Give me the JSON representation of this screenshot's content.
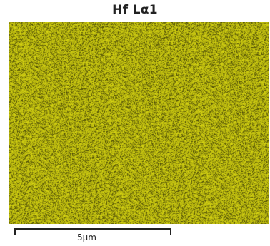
{
  "map": {
    "title": "Hf Lα1",
    "element": "Hf",
    "line": "Lα1",
    "color": "#d6d20a",
    "background_color": "#3f3e05"
  },
  "scale_bar": {
    "label": "5μm",
    "value": 5,
    "unit": "μm"
  }
}
